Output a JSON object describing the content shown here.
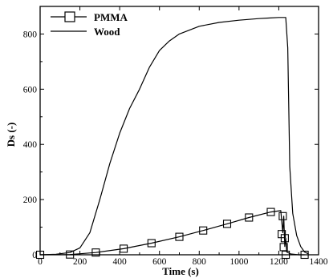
{
  "chart_data": {
    "type": "line",
    "xlabel": "Time (s)",
    "ylabel": "Ds (-)",
    "xlim": [
      0,
      1400
    ],
    "ylim": [
      0,
      900
    ],
    "x_ticks": [
      0,
      200,
      400,
      600,
      800,
      1000,
      1200,
      1400
    ],
    "y_ticks": [
      0,
      200,
      400,
      600,
      800
    ],
    "grid": false,
    "legend_position": "top-left",
    "series": [
      {
        "name": "PMMA",
        "color": "#000000",
        "marker": "square",
        "x": [
          0,
          150,
          280,
          420,
          560,
          700,
          820,
          940,
          1050,
          1160,
          1210,
          1220,
          1225,
          1230,
          1235,
          1240,
          1260,
          1300,
          1330
        ],
        "y": [
          0,
          1,
          8,
          22,
          42,
          65,
          88,
          112,
          135,
          155,
          160,
          80,
          140,
          30,
          60,
          10,
          3,
          0,
          0
        ]
      },
      {
        "name": "Wood",
        "color": "#000000",
        "marker": "none",
        "x": [
          0,
          80,
          150,
          200,
          250,
          300,
          350,
          400,
          450,
          500,
          550,
          600,
          650,
          700,
          800,
          900,
          1000,
          1100,
          1150,
          1200,
          1235,
          1245,
          1255,
          1270,
          1290,
          1310,
          1330,
          1350
        ],
        "y": [
          0,
          2,
          8,
          25,
          80,
          200,
          330,
          440,
          530,
          600,
          680,
          740,
          775,
          800,
          828,
          842,
          850,
          856,
          858,
          860,
          860,
          750,
          320,
          150,
          70,
          30,
          10,
          3
        ]
      }
    ],
    "markers": {
      "x": [
        0,
        150,
        280,
        420,
        560,
        700,
        820,
        940,
        1050,
        1160,
        1215,
        1220,
        1225,
        1230,
        1235,
        1330
      ],
      "y": [
        0,
        1,
        8,
        22,
        42,
        65,
        88,
        112,
        135,
        155,
        75,
        140,
        28,
        60,
        0,
        0
      ]
    }
  }
}
